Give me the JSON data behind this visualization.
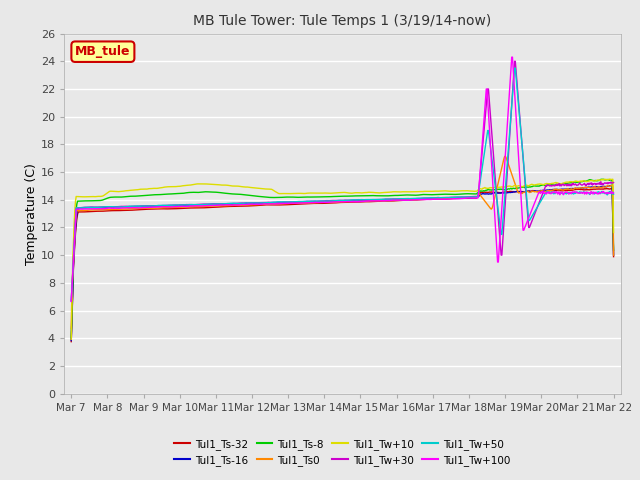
{
  "title": "MB Tule Tower: Tule Temps 1 (3/19/14-now)",
  "ylabel": "Temperature (C)",
  "ylim": [
    0,
    26
  ],
  "yticks": [
    0,
    2,
    4,
    6,
    8,
    10,
    12,
    14,
    16,
    18,
    20,
    22,
    24,
    26
  ],
  "x_labels": [
    "Mar 7",
    "Mar 8",
    "Mar 9",
    "Mar 10",
    "Mar 11",
    "Mar 12",
    "Mar 13",
    "Mar 14",
    "Mar 15",
    "Mar 16",
    "Mar 17",
    "Mar 18",
    "Mar 19",
    "Mar 20",
    "Mar 21",
    "Mar 22"
  ],
  "num_days": 16,
  "bg_color": "#e8e8e8",
  "plot_bg_color": "#e8e8e8",
  "grid_color": "#ffffff",
  "series": [
    {
      "name": "Tul1_Ts-32",
      "color": "#cc0000",
      "lw": 1.0
    },
    {
      "name": "Tul1_Ts-16",
      "color": "#0000cc",
      "lw": 1.0
    },
    {
      "name": "Tul1_Ts-8",
      "color": "#00cc00",
      "lw": 1.0
    },
    {
      "name": "Tul1_Ts0",
      "color": "#ff8800",
      "lw": 1.0
    },
    {
      "name": "Tul1_Tw+10",
      "color": "#dddd00",
      "lw": 1.0
    },
    {
      "name": "Tul1_Tw+30",
      "color": "#cc00cc",
      "lw": 1.0
    },
    {
      "name": "Tul1_Tw+50",
      "color": "#00cccc",
      "lw": 1.0
    },
    {
      "name": "Tul1_Tw+100",
      "color": "#ff00ff",
      "lw": 1.0
    }
  ],
  "legend_order": [
    "Tul1_Ts-32",
    "Tul1_Ts-16",
    "Tul1_Ts-8",
    "Tul1_Ts0",
    "Tul1_Tw+10",
    "Tul1_Tw+30",
    "Tul1_Tw+50",
    "Tul1_Tw+100"
  ],
  "annotation": {
    "text": "MB_tule",
    "facecolor": "#ffff99",
    "edgecolor": "#cc0000",
    "textcolor": "#cc0000"
  }
}
